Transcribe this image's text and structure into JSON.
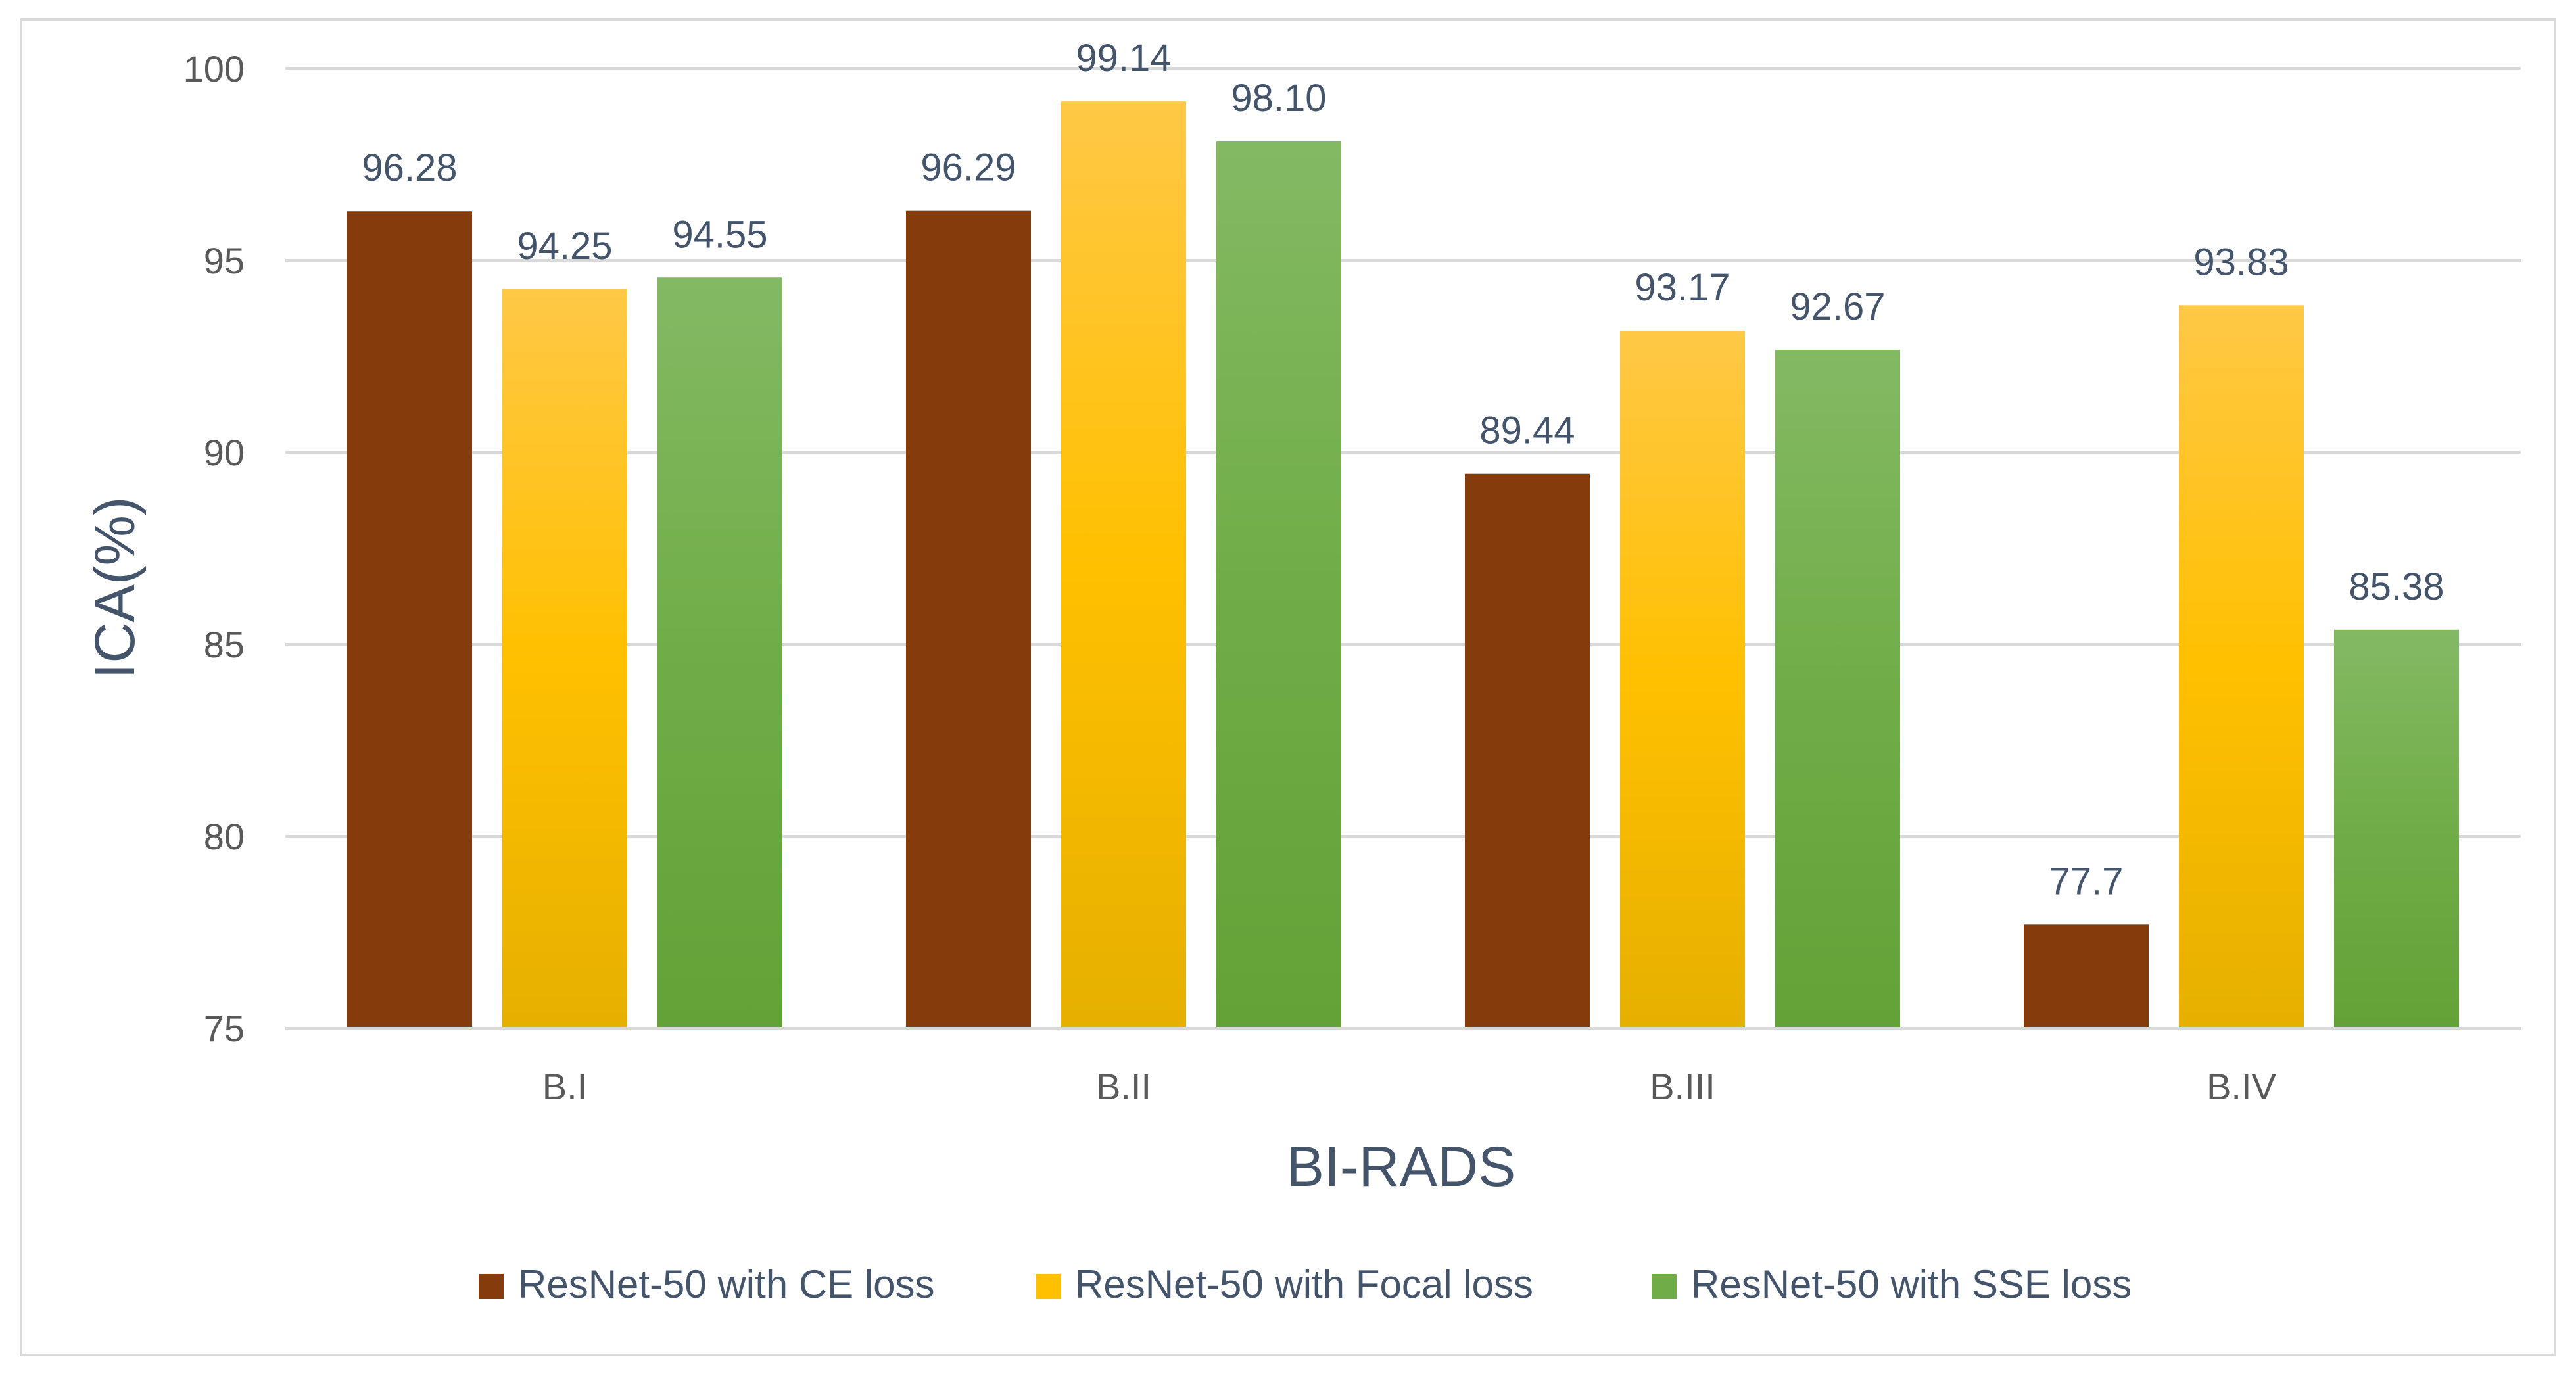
{
  "chart_data": {
    "type": "bar",
    "title": "",
    "xlabel": "BI-RADS",
    "ylabel": "ICA(%)",
    "ylim": [
      75,
      100
    ],
    "yticks": [
      75,
      80,
      85,
      90,
      95,
      100
    ],
    "grid": true,
    "legend_position": "bottom",
    "categories": [
      "B.I",
      "B.II",
      "B.III",
      "B.IV"
    ],
    "series": [
      {
        "name": "ResNet-50 with CE loss",
        "color": "#843c0c",
        "gradient": [
          "#843c0c",
          "#843c0c"
        ],
        "values": [
          96.28,
          96.29,
          89.44,
          77.7
        ],
        "labels": [
          "96.28",
          "96.29",
          "89.44",
          "77.7"
        ]
      },
      {
        "name": "ResNet-50 with Focal loss",
        "color": "#ffc000",
        "gradient": [
          "#ffc846",
          "#ffc000",
          "#e6b000"
        ],
        "values": [
          94.25,
          99.14,
          93.17,
          93.83
        ],
        "labels": [
          "94.25",
          "99.14",
          "93.17",
          "93.83"
        ]
      },
      {
        "name": "ResNet-50 with SSE loss",
        "color": "#70ad47",
        "gradient": [
          "#84b964",
          "#70ad47",
          "#62a236"
        ],
        "values": [
          94.55,
          98.1,
          92.67,
          85.38
        ],
        "labels": [
          "94.55",
          "98.10",
          "92.67",
          "85.38"
        ]
      }
    ]
  }
}
